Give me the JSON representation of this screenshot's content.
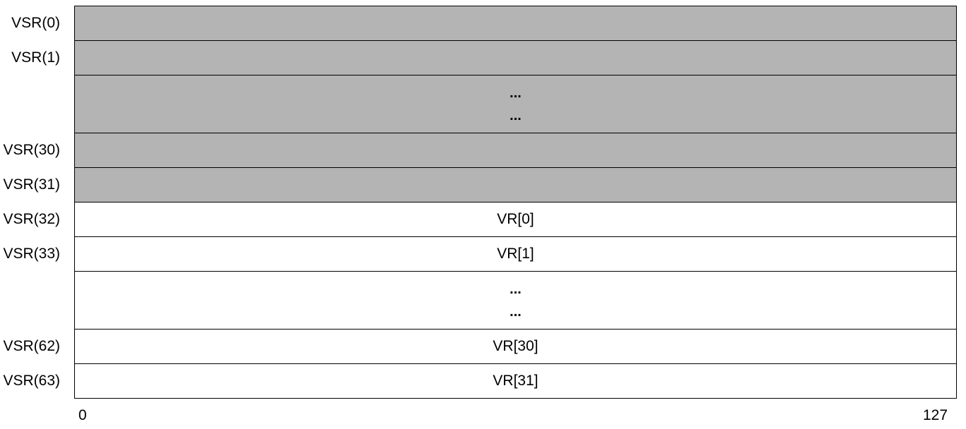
{
  "colors": {
    "register_shaded": "#b4b4b4",
    "register_plain": "#ffffff"
  },
  "rows": [
    {
      "label": "VSR(0)",
      "content": "",
      "shaded": true
    },
    {
      "label": "VSR(1)",
      "content": "",
      "shaded": true
    },
    {
      "ellipsis": [
        "...",
        "..."
      ],
      "shaded": true
    },
    {
      "label": "VSR(30)",
      "content": "",
      "shaded": true
    },
    {
      "label": "VSR(31)",
      "content": "",
      "shaded": true
    },
    {
      "label": "VSR(32)",
      "content": "VR[0]",
      "shaded": false
    },
    {
      "label": "VSR(33)",
      "content": "VR[1]",
      "shaded": false
    },
    {
      "ellipsis": [
        "...",
        "..."
      ],
      "shaded": false
    },
    {
      "label": "VSR(62)",
      "content": "VR[30]",
      "shaded": false
    },
    {
      "label": "VSR(63)",
      "content": "VR[31]",
      "shaded": false
    }
  ],
  "axis": {
    "start": "0",
    "end": "127"
  }
}
